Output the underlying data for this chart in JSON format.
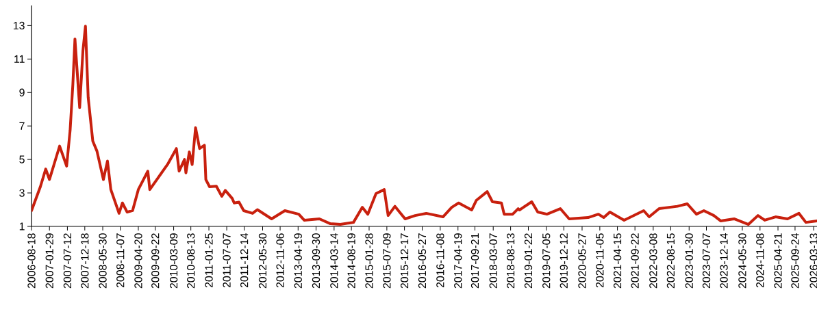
{
  "chart_data": {
    "type": "line",
    "color": "#c8200e",
    "marker": "none",
    "xlim": [
      "2006-08-18",
      "2026-04-13"
    ],
    "ylim": [
      1,
      14.2
    ],
    "yticks": [
      1,
      3,
      5,
      7,
      9,
      11,
      13
    ],
    "xticks": [
      "2006-08-18",
      "2007-01-29",
      "2007-07-12",
      "2007-12-18",
      "2008-05-30",
      "2008-11-07",
      "2009-04-20",
      "2009-09-22",
      "2010-03-09",
      "2010-08-13",
      "2011-01-25",
      "2011-07-07",
      "2011-12-14",
      "2012-05-30",
      "2012-11-06",
      "2013-04-19",
      "2013-09-30",
      "2014-03-14",
      "2014-08-19",
      "2015-01-28",
      "2015-07-09",
      "2015-12-17",
      "2016-05-27",
      "2016-11-08",
      "2017-04-19",
      "2017-09-21",
      "2018-03-07",
      "2018-08-13",
      "2019-01-22",
      "2019-07-05",
      "2019-12-12",
      "2020-05-27",
      "2020-11-05",
      "2021-04-15",
      "2021-09-22",
      "2022-03-08",
      "2022-08-15",
      "2023-01-30",
      "2023-07-07",
      "2023-12-14",
      "2024-05-30",
      "2024-11-08",
      "2025-04-21",
      "2025-09-24",
      "2026-03-13"
    ],
    "x": [
      "2006-08-18",
      "2006-11-07",
      "2006-12-26",
      "2007-01-29",
      "2007-05-02",
      "2007-07-05",
      "2007-08-06",
      "2007-08-31",
      "2007-09-19",
      "2007-11-01",
      "2007-12-01",
      "2007-12-24",
      "2008-01-18",
      "2008-02-29",
      "2008-04-07",
      "2008-06-05",
      "2008-07-12",
      "2008-08-12",
      "2008-10-26",
      "2008-11-26",
      "2009-01-08",
      "2009-02-27",
      "2009-04-20",
      "2009-07-16",
      "2009-08-03",
      "2009-10-17",
      "2010-01-12",
      "2010-04-03",
      "2010-04-28",
      "2010-06-16",
      "2010-06-29",
      "2010-07-30",
      "2010-08-25",
      "2010-09-25",
      "2010-11-01",
      "2010-12-15",
      "2010-12-28",
      "2011-01-31",
      "2011-04-03",
      "2011-05-23",
      "2011-06-24",
      "2011-08-26",
      "2011-09-13",
      "2011-10-27",
      "2011-12-09",
      "2012-02-28",
      "2012-04-12",
      "2012-08-20",
      "2012-12-19",
      "2013-04-25",
      "2013-06-14",
      "2013-10-31",
      "2014-02-08",
      "2014-05-10",
      "2014-09-07",
      "2014-11-27",
      "2015-01-16",
      "2015-04-01",
      "2015-06-15",
      "2015-07-21",
      "2015-09-21",
      "2015-12-23",
      "2016-03-24",
      "2016-07-03",
      "2016-12-03",
      "2017-02-21",
      "2017-04-25",
      "2017-08-22",
      "2017-10-03",
      "2018-01-11",
      "2018-02-28",
      "2018-05-21",
      "2018-06-15",
      "2018-09-01",
      "2018-10-21",
      "2018-11-02",
      "2019-02-22",
      "2019-04-18",
      "2019-07-11",
      "2019-11-10",
      "2020-01-30",
      "2020-07-21",
      "2020-10-23",
      "2020-12-11",
      "2021-02-05",
      "2021-06-15",
      "2021-12-11",
      "2022-01-30",
      "2022-05-01",
      "2022-10-15",
      "2023-01-13",
      "2023-04-07",
      "2023-06-14",
      "2023-09-13",
      "2023-11-14",
      "2024-03-16",
      "2024-07-25",
      "2024-10-20",
      "2024-12-21",
      "2025-03-30",
      "2025-07-17",
      "2025-10-30",
      "2026-01-01",
      "2026-04-13"
    ],
    "values": [
      1.94,
      3.37,
      4.43,
      3.8,
      5.8,
      4.6,
      6.75,
      9.5,
      12.2,
      8.1,
      11.5,
      12.96,
      8.7,
      6.1,
      5.5,
      3.8,
      4.9,
      3.2,
      1.78,
      2.4,
      1.85,
      1.95,
      3.2,
      4.3,
      3.2,
      3.9,
      4.7,
      5.65,
      4.3,
      5.0,
      4.2,
      5.45,
      4.7,
      6.9,
      5.65,
      5.85,
      3.8,
      3.37,
      3.4,
      2.8,
      3.15,
      2.67,
      2.4,
      2.45,
      1.94,
      1.78,
      2.0,
      1.45,
      1.94,
      1.73,
      1.37,
      1.45,
      1.16,
      1.12,
      1.24,
      2.14,
      1.73,
      2.96,
      3.2,
      1.65,
      2.2,
      1.45,
      1.65,
      1.78,
      1.57,
      2.14,
      2.4,
      1.98,
      2.55,
      3.08,
      2.47,
      2.4,
      1.73,
      1.73,
      2.06,
      1.98,
      2.47,
      1.86,
      1.73,
      2.06,
      1.45,
      1.53,
      1.73,
      1.53,
      1.86,
      1.37,
      1.94,
      1.57,
      2.06,
      2.2,
      2.35,
      1.73,
      1.94,
      1.65,
      1.33,
      1.45,
      1.12,
      1.65,
      1.37,
      1.57,
      1.45,
      1.78,
      1.24,
      1.33
    ]
  }
}
